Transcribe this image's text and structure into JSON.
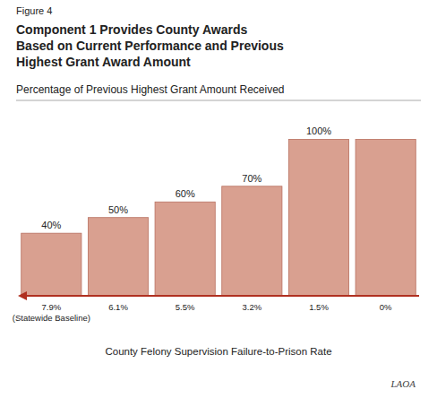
{
  "chart_data": {
    "type": "bar",
    "title": "Component 1 Provides County Awards\nBased on Current Performance and Previous\nHighest Grant Award Amount",
    "subtitle": "Percentage of Previous Highest Grant Amount Received",
    "x_label": "County Felony Supervision Failure-to-Prison Rate",
    "annotations": [
      "Figure 4",
      "LAOA"
    ],
    "categories": [
      "7.9%\n(Statewide Baseline)",
      "6.1%",
      "5.5%",
      "3.2%",
      "1.5%",
      "0%"
    ],
    "values": [
      40,
      50,
      60,
      70,
      100,
      100
    ],
    "value_labels": [
      "40%",
      "50%",
      "60%",
      "70%",
      "100%",
      null
    ],
    "data_labels": true,
    "color": "#d9a090",
    "ylim": [
      0,
      118
    ],
    "tick_labels": "x",
    "grid": false
  }
}
